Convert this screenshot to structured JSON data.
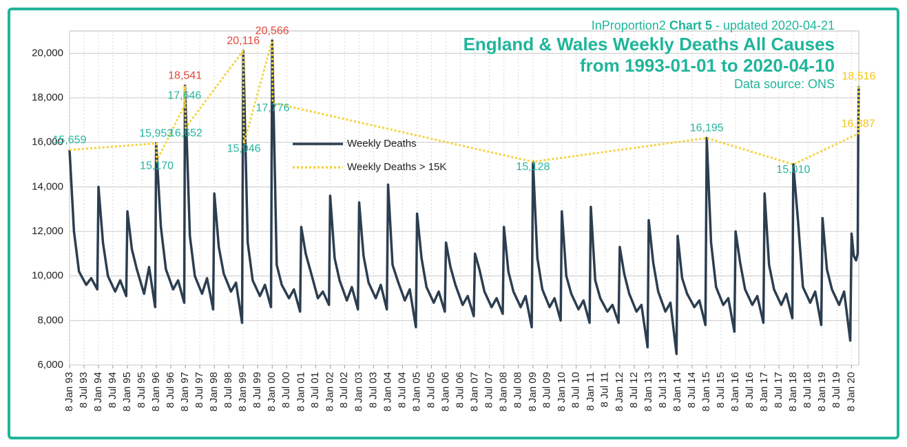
{
  "chart_data": {
    "type": "line",
    "subtitle_prefix": "InProportion2",
    "subtitle_bold": "Chart 5",
    "subtitle_suffix": "- updated 2020-04-21",
    "title": "England & Wales Weekly Deaths All Causes",
    "title_line2": "from 1993-01-01 to 2020-04-10",
    "source": "Data source: ONS",
    "xlim": [
      "1993-01-08",
      "2020-04-10"
    ],
    "ylim": [
      6000,
      21000
    ],
    "yticks": [
      {
        "value": 6000,
        "label": "6,000"
      },
      {
        "value": 8000,
        "label": "8,000"
      },
      {
        "value": 10000,
        "label": "10,000"
      },
      {
        "value": 12000,
        "label": "12,000"
      },
      {
        "value": 14000,
        "label": "14,000"
      },
      {
        "value": 16000,
        "label": "16,000"
      },
      {
        "value": 18000,
        "label": "18,000"
      },
      {
        "value": 20000,
        "label": "20,000"
      }
    ],
    "xticks": [
      {
        "value": "1993-01-08",
        "label": "8 Jan 93"
      },
      {
        "value": "1993-07-08",
        "label": "8 Jul 93"
      },
      {
        "value": "1994-01-08",
        "label": "8 Jan 94"
      },
      {
        "value": "1994-07-08",
        "label": "8 Jul 94"
      },
      {
        "value": "1995-01-08",
        "label": "8 Jan 95"
      },
      {
        "value": "1995-07-08",
        "label": "8 Jul 95"
      },
      {
        "value": "1996-01-08",
        "label": "8 Jan 96"
      },
      {
        "value": "1996-07-08",
        "label": "8 Jul 96"
      },
      {
        "value": "1997-01-08",
        "label": "8 Jan 97"
      },
      {
        "value": "1997-07-08",
        "label": "8 Jul 97"
      },
      {
        "value": "1998-01-08",
        "label": "8 Jan 98"
      },
      {
        "value": "1998-07-08",
        "label": "8 Jul 98"
      },
      {
        "value": "1999-01-08",
        "label": "8 Jan 99"
      },
      {
        "value": "1999-07-08",
        "label": "8 Jul 99"
      },
      {
        "value": "2000-01-08",
        "label": "8 Jan 00"
      },
      {
        "value": "2000-07-08",
        "label": "8 Jul 00"
      },
      {
        "value": "2001-01-08",
        "label": "8 Jan 01"
      },
      {
        "value": "2001-07-08",
        "label": "8 Jul 01"
      },
      {
        "value": "2002-01-08",
        "label": "8 Jan 02"
      },
      {
        "value": "2002-07-08",
        "label": "8 Jul 02"
      },
      {
        "value": "2003-01-08",
        "label": "8 Jan 03"
      },
      {
        "value": "2003-07-08",
        "label": "8 Jul 03"
      },
      {
        "value": "2004-01-08",
        "label": "8 Jan 04"
      },
      {
        "value": "2004-07-08",
        "label": "8 Jul 04"
      },
      {
        "value": "2005-01-08",
        "label": "8 Jan 05"
      },
      {
        "value": "2005-07-08",
        "label": "8 Jul 05"
      },
      {
        "value": "2006-01-08",
        "label": "8 Jan 06"
      },
      {
        "value": "2006-07-08",
        "label": "8 Jul 06"
      },
      {
        "value": "2007-01-08",
        "label": "8 Jan 07"
      },
      {
        "value": "2007-07-08",
        "label": "8 Jul 07"
      },
      {
        "value": "2008-01-08",
        "label": "8 Jan 08"
      },
      {
        "value": "2008-07-08",
        "label": "8 Jul 08"
      },
      {
        "value": "2009-01-08",
        "label": "8 Jan 09"
      },
      {
        "value": "2009-07-08",
        "label": "8 Jul 09"
      },
      {
        "value": "2010-01-08",
        "label": "8 Jan 10"
      },
      {
        "value": "2010-07-08",
        "label": "8 Jul 10"
      },
      {
        "value": "2011-01-08",
        "label": "8 Jan 11"
      },
      {
        "value": "2011-07-08",
        "label": "8 Jul 11"
      },
      {
        "value": "2012-01-08",
        "label": "8 Jan 12"
      },
      {
        "value": "2012-07-08",
        "label": "8 Jul 12"
      },
      {
        "value": "2013-01-08",
        "label": "8 Jan 13"
      },
      {
        "value": "2013-07-08",
        "label": "8 Jul 13"
      },
      {
        "value": "2014-01-08",
        "label": "8 Jan 14"
      },
      {
        "value": "2014-07-08",
        "label": "8 Jul 14"
      },
      {
        "value": "2015-01-08",
        "label": "8 Jan 15"
      },
      {
        "value": "2015-07-08",
        "label": "8 Jul 15"
      },
      {
        "value": "2016-01-08",
        "label": "8 Jan 16"
      },
      {
        "value": "2016-07-08",
        "label": "8 Jul 16"
      },
      {
        "value": "2017-01-08",
        "label": "8 Jan 17"
      },
      {
        "value": "2017-07-08",
        "label": "8 Jul 17"
      },
      {
        "value": "2018-01-08",
        "label": "8 Jan 18"
      },
      {
        "value": "2018-07-08",
        "label": "8 Jul 18"
      },
      {
        "value": "2019-01-08",
        "label": "8 Jan 19"
      },
      {
        "value": "2019-07-08",
        "label": "8 Jul 19"
      },
      {
        "value": "2020-01-08",
        "label": "8 Jan 20"
      }
    ],
    "grid": true,
    "series": [
      {
        "name": "Weekly Deaths",
        "color": "#2c3e50",
        "style": "solid",
        "x": [
          "1993-01-08",
          "1993-03-05",
          "1993-05-07",
          "1993-08-06",
          "1993-10-08",
          "1993-12-24",
          "1994-01-08",
          "1994-03-05",
          "1994-05-07",
          "1994-08-06",
          "1994-10-08",
          "1994-12-24",
          "1995-01-08",
          "1995-03-05",
          "1995-05-07",
          "1995-08-06",
          "1995-10-08",
          "1995-12-24",
          "1996-01-05",
          "1996-03-05",
          "1996-05-07",
          "1996-08-06",
          "1996-10-08",
          "1996-12-24",
          "1997-01-03",
          "1997-03-05",
          "1997-05-07",
          "1997-08-06",
          "1997-10-08",
          "1997-12-24",
          "1998-01-08",
          "1998-03-05",
          "1998-05-07",
          "1998-08-06",
          "1998-10-08",
          "1998-12-24",
          "1999-01-08",
          "1999-03-05",
          "1999-05-07",
          "1999-08-06",
          "1999-10-08",
          "1999-12-24",
          "2000-01-07",
          "2000-03-05",
          "2000-05-07",
          "2000-08-06",
          "2000-10-08",
          "2000-12-24",
          "2001-01-08",
          "2001-03-05",
          "2001-05-07",
          "2001-08-06",
          "2001-10-08",
          "2001-12-24",
          "2002-01-08",
          "2002-03-05",
          "2002-05-07",
          "2002-08-06",
          "2002-10-08",
          "2002-12-24",
          "2003-01-08",
          "2003-03-05",
          "2003-05-07",
          "2003-08-06",
          "2003-10-08",
          "2003-12-24",
          "2004-01-08",
          "2004-03-05",
          "2004-05-07",
          "2004-08-06",
          "2004-10-08",
          "2004-12-24",
          "2005-01-08",
          "2005-03-05",
          "2005-05-07",
          "2005-08-06",
          "2005-10-08",
          "2005-12-24",
          "2006-01-08",
          "2006-03-05",
          "2006-05-07",
          "2006-08-06",
          "2006-10-08",
          "2006-12-24",
          "2007-01-08",
          "2007-03-05",
          "2007-05-07",
          "2007-08-06",
          "2007-10-08",
          "2007-12-24",
          "2008-01-08",
          "2008-03-05",
          "2008-05-07",
          "2008-08-06",
          "2008-10-08",
          "2008-12-24",
          "2009-01-09",
          "2009-03-05",
          "2009-05-07",
          "2009-08-06",
          "2009-10-08",
          "2009-12-24",
          "2010-01-08",
          "2010-03-05",
          "2010-05-07",
          "2010-08-06",
          "2010-10-08",
          "2010-12-24",
          "2011-01-08",
          "2011-03-05",
          "2011-05-07",
          "2011-08-06",
          "2011-10-08",
          "2011-12-24",
          "2012-01-08",
          "2012-03-05",
          "2012-05-07",
          "2012-08-06",
          "2012-10-08",
          "2012-12-24",
          "2013-01-08",
          "2013-03-05",
          "2013-05-07",
          "2013-08-06",
          "2013-10-08",
          "2013-12-24",
          "2014-01-08",
          "2014-03-05",
          "2014-05-07",
          "2014-08-06",
          "2014-10-08",
          "2014-12-24",
          "2015-01-09",
          "2015-03-05",
          "2015-05-07",
          "2015-08-06",
          "2015-10-08",
          "2015-12-24",
          "2016-01-08",
          "2016-03-05",
          "2016-05-07",
          "2016-08-06",
          "2016-10-08",
          "2016-12-24",
          "2017-01-08",
          "2017-03-05",
          "2017-05-07",
          "2017-08-06",
          "2017-10-08",
          "2017-12-24",
          "2018-01-05",
          "2018-03-05",
          "2018-05-07",
          "2018-08-06",
          "2018-10-08",
          "2018-12-24",
          "2019-01-08",
          "2019-03-05",
          "2019-05-07",
          "2019-08-06",
          "2019-10-08",
          "2019-12-24",
          "2020-01-10",
          "2020-02-07",
          "2020-03-06",
          "2020-03-27",
          "2020-04-03",
          "2020-04-10"
        ],
        "values": [
          15659,
          12000,
          10200,
          9600,
          9900,
          9400,
          14000,
          11500,
          10000,
          9300,
          9800,
          9100,
          12900,
          11200,
          10300,
          9200,
          10400,
          8600,
          15953,
          12200,
          10300,
          9400,
          9800,
          8800,
          18541,
          11800,
          10000,
          9200,
          9900,
          8500,
          13700,
          11300,
          10100,
          9300,
          9700,
          7900,
          20116,
          11500,
          9800,
          9100,
          9600,
          8600,
          20566,
          10500,
          9600,
          9000,
          9400,
          8400,
          12200,
          11000,
          10200,
          9000,
          9300,
          8700,
          13600,
          10800,
          9800,
          8900,
          9500,
          8500,
          13300,
          10900,
          9700,
          9000,
          9600,
          8500,
          14100,
          10500,
          9800,
          8900,
          9400,
          7700,
          12800,
          10800,
          9500,
          8800,
          9300,
          8400,
          11500,
          10400,
          9600,
          8700,
          9100,
          8200,
          11000,
          10300,
          9300,
          8600,
          9000,
          8300,
          12200,
          10200,
          9300,
          8600,
          9100,
          7700,
          15128,
          10800,
          9400,
          8600,
          9000,
          8000,
          12900,
          10000,
          9200,
          8500,
          8900,
          7900,
          13100,
          9800,
          9000,
          8400,
          8700,
          7900,
          11300,
          10100,
          9200,
          8400,
          8700,
          6800,
          12500,
          10600,
          9300,
          8400,
          8800,
          6500,
          11800,
          9900,
          9200,
          8600,
          8900,
          7800,
          16195,
          11500,
          9500,
          8700,
          9000,
          7500,
          12000,
          10600,
          9400,
          8700,
          9100,
          7900,
          13700,
          10500,
          9400,
          8700,
          9200,
          8100,
          15010,
          12500,
          9500,
          8800,
          9300,
          7800,
          12600,
          10300,
          9400,
          8700,
          9300,
          7100,
          11900,
          10900,
          10700,
          11000,
          16387,
          18516
        ]
      },
      {
        "name": "Weekly Deaths > 15K",
        "color": "#f5d33a",
        "style": "dotted",
        "x": [
          "1993-01-08",
          "1996-01-05",
          "1996-01-12",
          "1996-12-27",
          "1997-01-03",
          "1997-01-10",
          "1999-01-08",
          "1999-01-15",
          "2000-01-07",
          "2000-01-14",
          "2009-01-09",
          "2015-01-09",
          "2018-01-05",
          "2020-04-03",
          "2020-04-10"
        ],
        "values": [
          15659,
          15953,
          15170,
          17646,
          18541,
          16652,
          20116,
          15946,
          20566,
          17776,
          15128,
          16195,
          15010,
          16387,
          18516
        ],
        "value_labels": [
          "15,659",
          "15,953",
          "15,170",
          "17,646",
          "18,541",
          "16,652",
          "20,116",
          "15,946",
          "20,566",
          "17,776",
          "15,128",
          "16,195",
          "15,010",
          "16,387",
          "18,516"
        ],
        "label_colors": [
          "#26b5a0",
          "#26b5a0",
          "#26b5a0",
          "#26b5a0",
          "#e0493a",
          "#26b5a0",
          "#e0493a",
          "#26b5a0",
          "#e0493a",
          "#26b5a0",
          "#26b5a0",
          "#26b5a0",
          "#26b5a0",
          "#f5c518",
          "#f5c518"
        ]
      }
    ]
  }
}
